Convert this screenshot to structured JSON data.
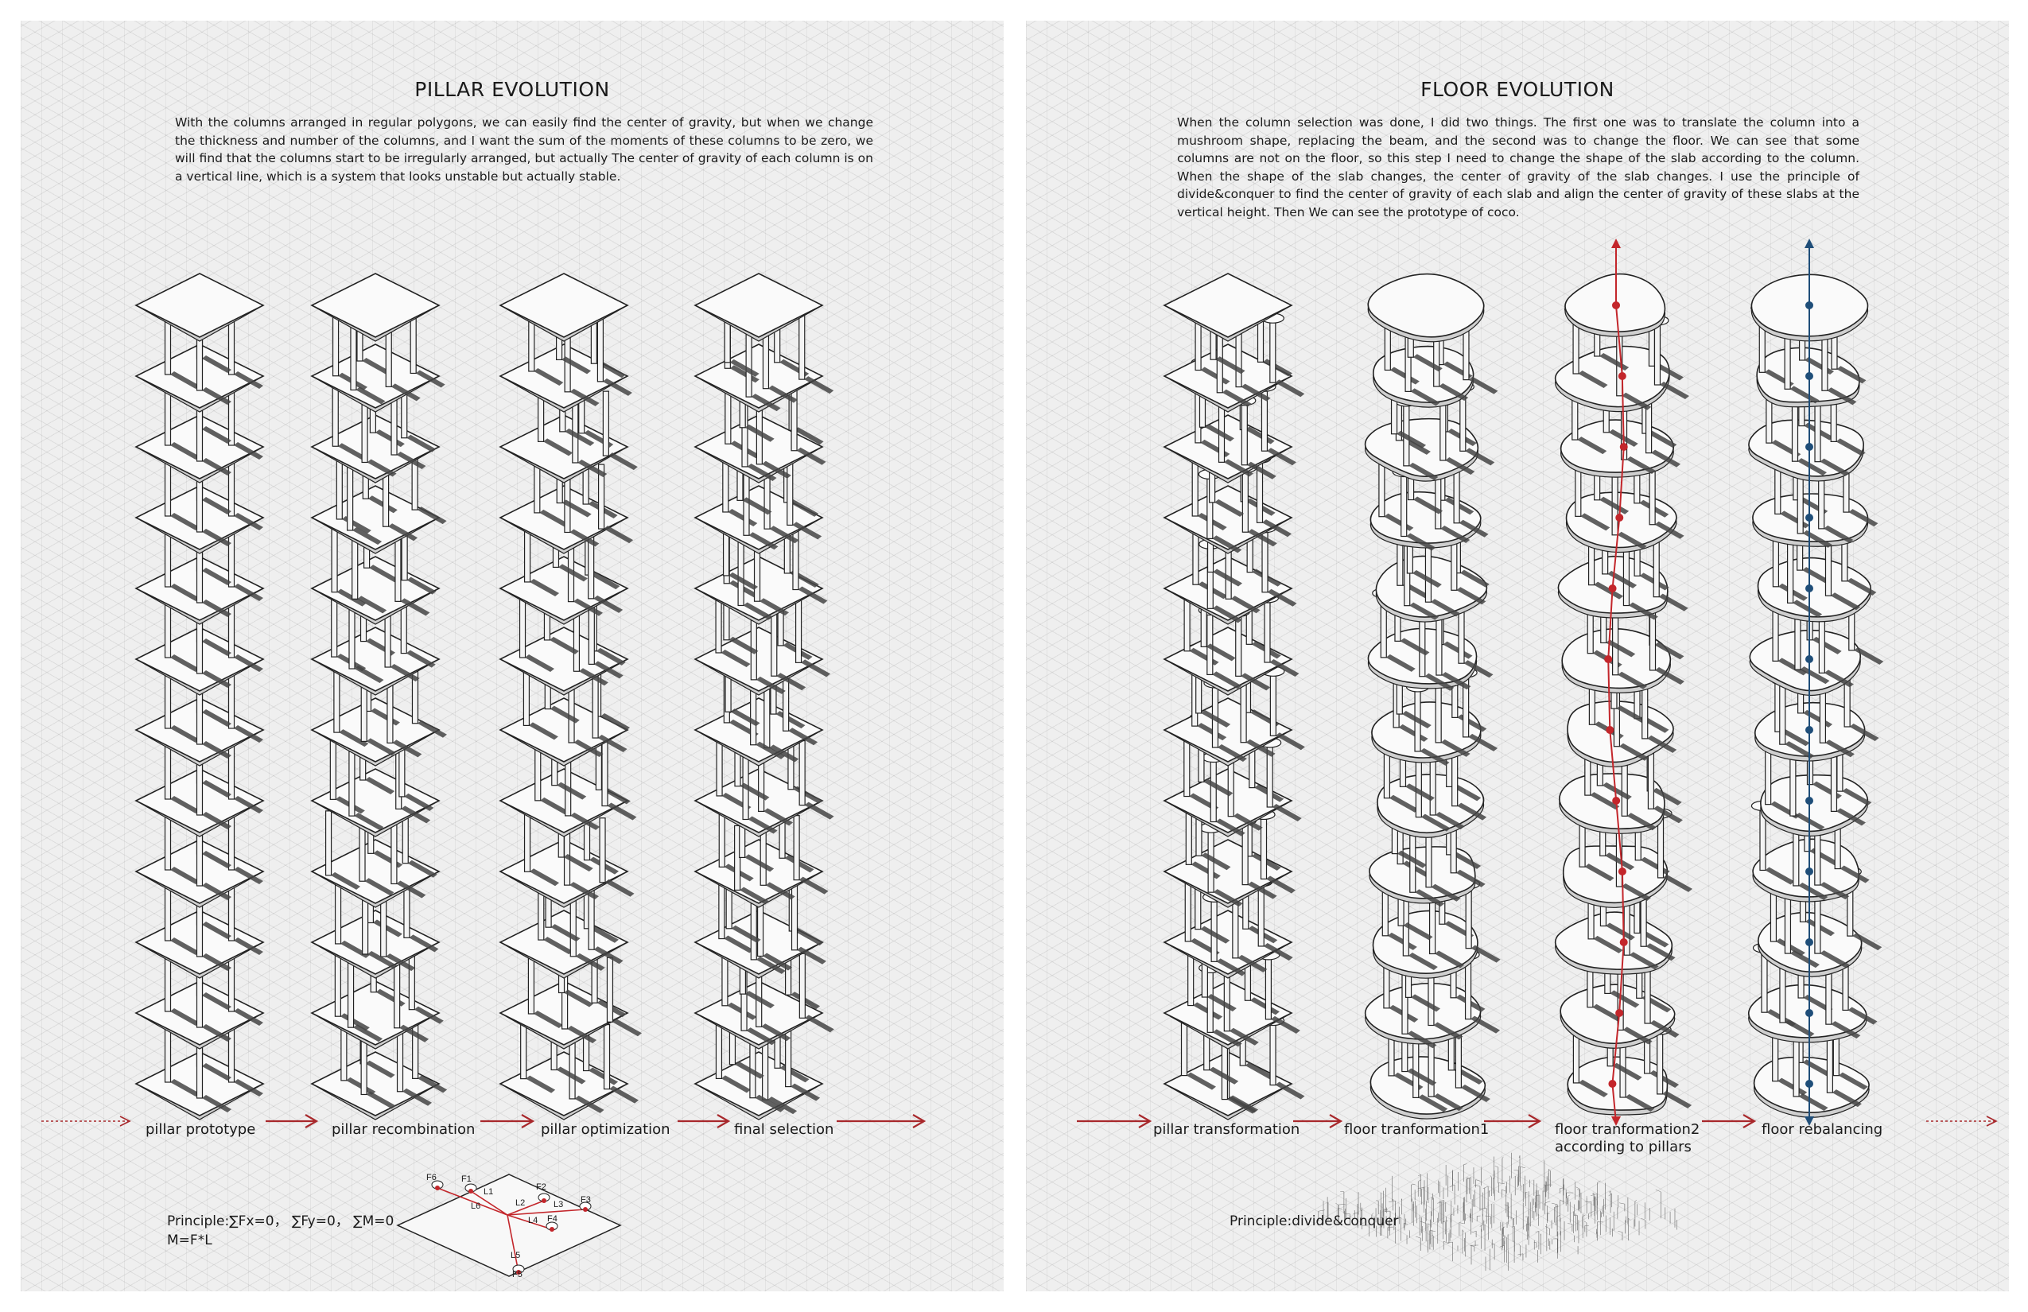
{
  "left_panel": {
    "title": "PILLAR EVOLUTION",
    "description": "With the columns arranged in regular polygons, we can easily find the center of gravity, but when we change the thickness and number of the columns, and I want the sum of the moments of these columns to be zero, we will find that the columns start to be irregularly arranged, but actually The center of gravity of each column is on a vertical line, which is a system that looks unstable but actually stable.",
    "stages": [
      "pillar prototype",
      "pillar recombination",
      "pillar optimization",
      "final selection"
    ],
    "principle_line1": "Principle:∑Fx=0， ∑Fy=0， ∑M=0",
    "principle_line2": "M=F*L",
    "force_diagram_labels": [
      "F6",
      "F1",
      "L1",
      "L6",
      "F2",
      "L2",
      "L3",
      "F3",
      "L4",
      "F4",
      "L5",
      "F5"
    ]
  },
  "right_panel": {
    "title": "FLOOR EVOLUTION",
    "description": "When the column selection was done, I did two things. The first one was to translate the column into a mushroom shape, replacing the beam, and the second was to change the floor. We can see that some columns are not on the floor, so this step I need to change the shape of the slab according to the column. When the shape of the slab changes, the center of gravity of the slab changes. I use the principle of divide&conquer to find the center of gravity of each slab and align the center of gravity of these slabs at the vertical height. Then We can see the prototype of coco.",
    "stages": [
      "pillar transformation",
      "floor tranformation1",
      "floor tranformation2",
      "floor rebalancing"
    ],
    "stage3_sub": "according to pillars",
    "principle": "Principle:divide&conquer"
  },
  "colors": {
    "arrow_red": "#a8282c",
    "gravity_red": "#c3262b",
    "gravity_blue": "#1f4e79",
    "panel_bg": "#efefef",
    "shadow": "#555555"
  }
}
